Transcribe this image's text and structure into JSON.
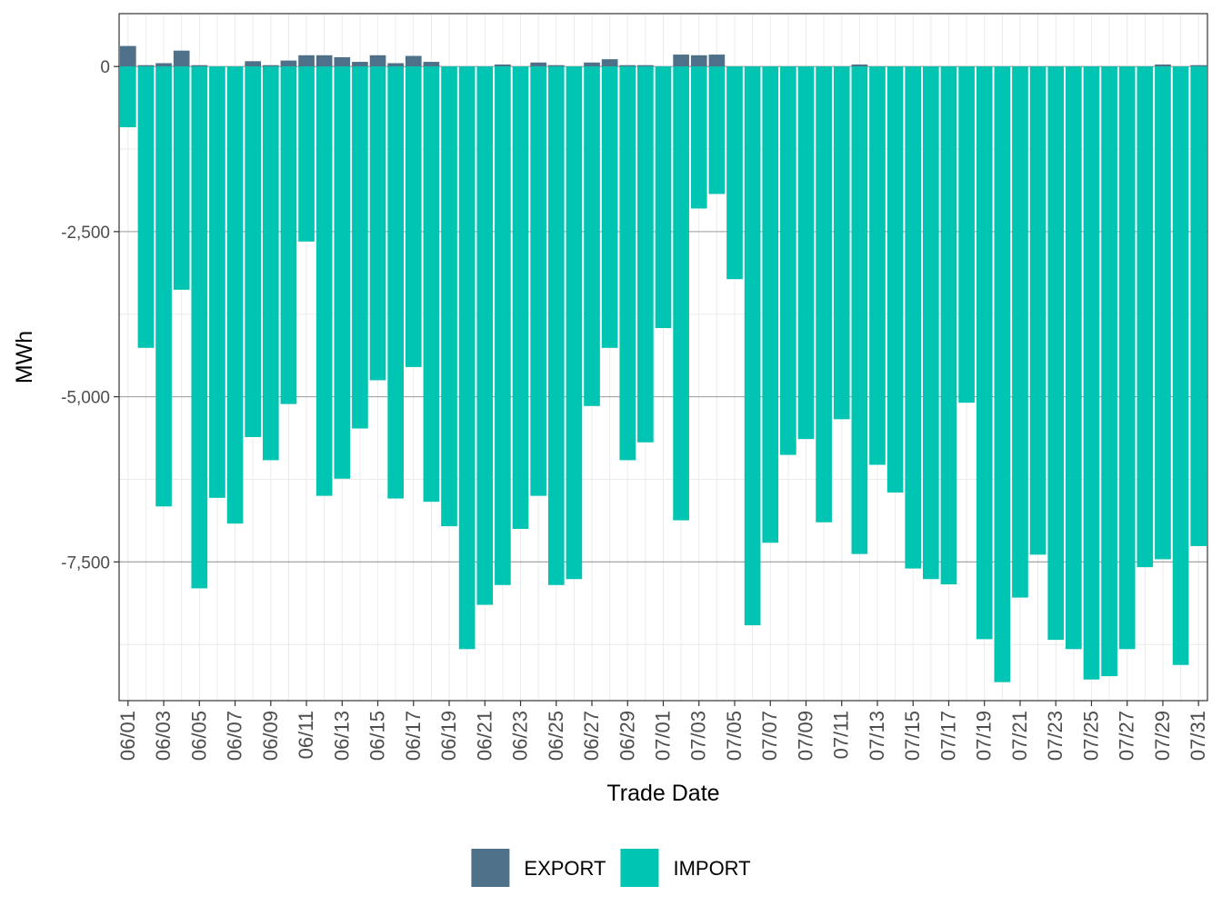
{
  "chart_data": {
    "type": "bar",
    "stacked": true,
    "title": "",
    "xlabel": "Trade Date",
    "ylabel": "MWh",
    "ylim": [
      -9600,
      800
    ],
    "y_ticks": [
      0,
      -2500,
      -5000,
      -7500
    ],
    "y_tick_labels": [
      "0",
      "-2,500",
      "-5,000",
      "-7,500"
    ],
    "grid": true,
    "legend_position": "bottom",
    "categories": [
      "06/01",
      "06/02",
      "06/03",
      "06/04",
      "06/05",
      "06/06",
      "06/07",
      "06/08",
      "06/09",
      "06/10",
      "06/11",
      "06/12",
      "06/13",
      "06/14",
      "06/15",
      "06/16",
      "06/17",
      "06/18",
      "06/19",
      "06/20",
      "06/21",
      "06/22",
      "06/23",
      "06/24",
      "06/25",
      "06/26",
      "06/27",
      "06/28",
      "06/29",
      "06/30",
      "07/01",
      "07/02",
      "07/03",
      "07/04",
      "07/05",
      "07/06",
      "07/07",
      "07/08",
      "07/09",
      "07/10",
      "07/11",
      "07/12",
      "07/13",
      "07/14",
      "07/15",
      "07/16",
      "07/17",
      "07/18",
      "07/19",
      "07/20",
      "07/21",
      "07/22",
      "07/23",
      "07/24",
      "07/25",
      "07/26",
      "07/27",
      "07/28",
      "07/29",
      "07/30",
      "07/31"
    ],
    "x_tick_labels": [
      "06/01",
      "06/03",
      "06/05",
      "06/07",
      "06/09",
      "06/11",
      "06/13",
      "06/15",
      "06/17",
      "06/19",
      "06/21",
      "06/23",
      "06/25",
      "06/27",
      "06/29",
      "07/01",
      "07/03",
      "07/05",
      "07/07",
      "07/09",
      "07/11",
      "07/13",
      "07/15",
      "07/17",
      "07/19",
      "07/21",
      "07/23",
      "07/25",
      "07/27",
      "07/29",
      "07/31"
    ],
    "series": [
      {
        "name": "EXPORT",
        "color": "#4e7088",
        "values": [
          310,
          20,
          50,
          240,
          20,
          0,
          0,
          80,
          20,
          90,
          170,
          170,
          140,
          70,
          170,
          50,
          160,
          70,
          0,
          0,
          0,
          30,
          0,
          60,
          20,
          0,
          60,
          110,
          20,
          20,
          0,
          180,
          170,
          180,
          0,
          0,
          0,
          0,
          0,
          0,
          0,
          30,
          0,
          0,
          0,
          0,
          0,
          0,
          0,
          0,
          0,
          0,
          0,
          0,
          0,
          0,
          0,
          0,
          30,
          0,
          20
        ]
      },
      {
        "name": "IMPORT",
        "color": "#00c5b2",
        "values": [
          -920,
          -4260,
          -6660,
          -3380,
          -7900,
          -6530,
          -6920,
          -5610,
          -5960,
          -5110,
          -2650,
          -6500,
          -6240,
          -5480,
          -4750,
          -6540,
          -4550,
          -6590,
          -6960,
          -8820,
          -8150,
          -7850,
          -7000,
          -6500,
          -7850,
          -7760,
          -5140,
          -4260,
          -5960,
          -5690,
          -3960,
          -6870,
          -2150,
          -1930,
          -3220,
          -8460,
          -7210,
          -5880,
          -5640,
          -6900,
          -5340,
          -7380,
          -6030,
          -6450,
          -7600,
          -7760,
          -7840,
          -5090,
          -8670,
          -9320,
          -8040,
          -7390,
          -8680,
          -8820,
          -9280,
          -9230,
          -8820,
          -7580,
          -7460,
          -9060,
          -7260
        ]
      }
    ]
  }
}
